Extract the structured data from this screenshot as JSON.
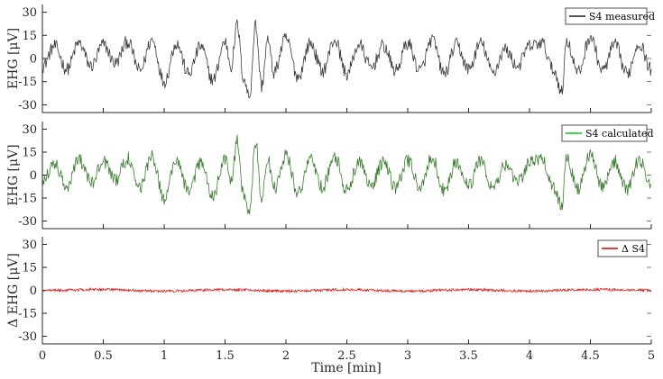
{
  "chart_data": {
    "type": "line",
    "xlabel": "Time [min]",
    "xlim": [
      0,
      5
    ],
    "x_ticks": [
      0,
      0.5,
      1,
      1.5,
      2,
      2.5,
      3,
      3.5,
      4,
      4.5,
      5
    ],
    "x_tick_labels": [
      "0",
      "0.5",
      "1",
      "1.5",
      "2",
      "2.5",
      "3",
      "3.5",
      "4",
      "4.5",
      "5"
    ],
    "grid": false,
    "legend_position": "top-right",
    "panels": [
      {
        "ylabel": "EHG [μV]",
        "ylim": [
          -35,
          35
        ],
        "y_ticks": [
          -30,
          -15,
          0,
          15,
          30
        ],
        "y_tick_labels": [
          "-30",
          "-15",
          "0",
          "15",
          "30"
        ],
        "series": [
          {
            "name": "S4 measured",
            "color": "#3c3c3c",
            "x": [
              0,
              0.1,
              0.2,
              0.3,
              0.4,
              0.5,
              0.6,
              0.7,
              0.8,
              0.9,
              1.0,
              1.1,
              1.2,
              1.3,
              1.4,
              1.5,
              1.55,
              1.6,
              1.65,
              1.7,
              1.75,
              1.8,
              1.85,
              1.9,
              2.0,
              2.1,
              2.2,
              2.3,
              2.4,
              2.5,
              2.6,
              2.7,
              2.8,
              2.9,
              3.0,
              3.1,
              3.2,
              3.3,
              3.4,
              3.5,
              3.6,
              3.7,
              3.8,
              3.9,
              4.0,
              4.1,
              4.2,
              4.27,
              4.3,
              4.4,
              4.5,
              4.6,
              4.7,
              4.8,
              4.9,
              5.0
            ],
            "y": [
              -5,
              8,
              -7,
              10,
              -5,
              9,
              -3,
              11,
              -8,
              12,
              -15,
              10,
              -10,
              8,
              -14,
              11,
              -5,
              22,
              -12,
              -25,
              22,
              -18,
              12,
              -9,
              13,
              -12,
              10,
              -8,
              12,
              -10,
              9,
              -6,
              8,
              -8,
              10,
              -8,
              12,
              -10,
              9,
              -7,
              10,
              -9,
              6,
              -5,
              8,
              10,
              -8,
              -22,
              12,
              -9,
              14,
              -8,
              9,
              -10,
              10,
              -7
            ]
          }
        ]
      },
      {
        "ylabel": "EHG [μV]",
        "ylim": [
          -35,
          35
        ],
        "y_ticks": [
          -30,
          -15,
          0,
          15,
          30
        ],
        "y_tick_labels": [
          "-30",
          "-15",
          "0",
          "15",
          "30"
        ],
        "series": [
          {
            "name": "S4 calculated",
            "color": "#3a7d2e",
            "legend_color": "#33cc33",
            "x": [
              0,
              0.1,
              0.2,
              0.3,
              0.4,
              0.5,
              0.6,
              0.7,
              0.8,
              0.9,
              1.0,
              1.1,
              1.2,
              1.3,
              1.4,
              1.5,
              1.55,
              1.6,
              1.65,
              1.7,
              1.75,
              1.8,
              1.85,
              1.9,
              2.0,
              2.1,
              2.2,
              2.3,
              2.4,
              2.5,
              2.6,
              2.7,
              2.8,
              2.9,
              3.0,
              3.1,
              3.2,
              3.3,
              3.4,
              3.5,
              3.6,
              3.7,
              3.8,
              3.9,
              4.0,
              4.1,
              4.2,
              4.27,
              4.3,
              4.4,
              4.5,
              4.6,
              4.7,
              4.8,
              4.9,
              5.0
            ],
            "y": [
              -5,
              8,
              -7,
              10,
              -5,
              9,
              -3,
              11,
              -8,
              12,
              -15,
              10,
              -10,
              8,
              -14,
              11,
              -5,
              22,
              -12,
              -25,
              22,
              -18,
              12,
              -9,
              13,
              -12,
              10,
              -8,
              12,
              -10,
              9,
              -6,
              8,
              -8,
              10,
              -8,
              12,
              -10,
              9,
              -7,
              10,
              -9,
              6,
              -5,
              8,
              10,
              -8,
              -22,
              12,
              -9,
              14,
              -8,
              9,
              -10,
              10,
              -7
            ]
          }
        ]
      },
      {
        "ylabel": "Δ EHG [μV]",
        "ylim": [
          -35,
          35
        ],
        "y_ticks": [
          -30,
          -15,
          0,
          15,
          30
        ],
        "y_tick_labels": [
          "-30",
          "-15",
          "0",
          "15",
          "30"
        ],
        "series": [
          {
            "name": "Δ S4",
            "color": "#dd2222",
            "x": [
              0,
              0.5,
              1,
              1.5,
              2,
              2.5,
              3,
              3.5,
              4,
              4.5,
              5
            ],
            "y": [
              0,
              0.5,
              -0.5,
              0.5,
              -0.5,
              0.5,
              -0.5,
              0.5,
              -0.5,
              0.5,
              0
            ]
          }
        ]
      }
    ]
  }
}
